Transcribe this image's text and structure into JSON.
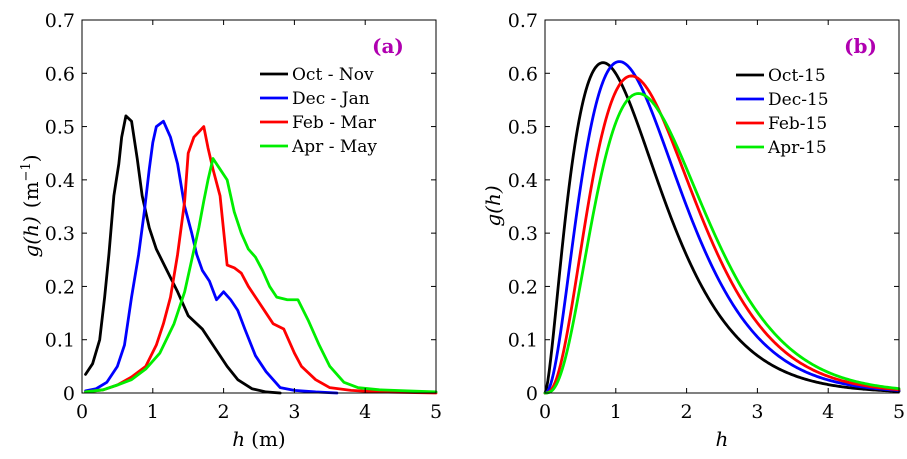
{
  "chart_data": [
    {
      "type": "line",
      "panel_label": "(a)",
      "xlabel_var": "h",
      "xlabel_unit": "(m)",
      "ylabel_var": "g(h)",
      "ylabel_unit": "(m",
      "ylabel_unit_exp": "−1",
      "ylabel_unit_close": ")",
      "xlim": [
        0,
        5
      ],
      "ylim": [
        0,
        0.7
      ],
      "xticks": [
        "0",
        "1",
        "2",
        "3",
        "4",
        "5"
      ],
      "yticks": [
        "0",
        "0.1",
        "0.2",
        "0.3",
        "0.4",
        "0.5",
        "0.6",
        "0.7"
      ],
      "legend_position": "top-right",
      "grid": false,
      "series": [
        {
          "name": "Oct - Nov",
          "color": "#000000",
          "points": [
            [
              0.05,
              0.035
            ],
            [
              0.15,
              0.055
            ],
            [
              0.25,
              0.1
            ],
            [
              0.32,
              0.18
            ],
            [
              0.38,
              0.26
            ],
            [
              0.45,
              0.37
            ],
            [
              0.52,
              0.43
            ],
            [
              0.56,
              0.48
            ],
            [
              0.62,
              0.52
            ],
            [
              0.7,
              0.51
            ],
            [
              0.78,
              0.44
            ],
            [
              0.85,
              0.37
            ],
            [
              0.95,
              0.31
            ],
            [
              1.05,
              0.27
            ],
            [
              1.2,
              0.23
            ],
            [
              1.35,
              0.19
            ],
            [
              1.5,
              0.145
            ],
            [
              1.7,
              0.12
            ],
            [
              1.9,
              0.08
            ],
            [
              2.05,
              0.05
            ],
            [
              2.2,
              0.025
            ],
            [
              2.4,
              0.008
            ],
            [
              2.6,
              0.002
            ],
            [
              2.8,
              0.0
            ]
          ]
        },
        {
          "name": "Dec - Jan",
          "color": "#0000ff",
          "points": [
            [
              0.05,
              0.004
            ],
            [
              0.2,
              0.008
            ],
            [
              0.35,
              0.02
            ],
            [
              0.5,
              0.05
            ],
            [
              0.6,
              0.09
            ],
            [
              0.7,
              0.18
            ],
            [
              0.8,
              0.26
            ],
            [
              0.88,
              0.34
            ],
            [
              0.95,
              0.42
            ],
            [
              1.0,
              0.47
            ],
            [
              1.05,
              0.5
            ],
            [
              1.15,
              0.51
            ],
            [
              1.25,
              0.48
            ],
            [
              1.35,
              0.43
            ],
            [
              1.45,
              0.35
            ],
            [
              1.55,
              0.3
            ],
            [
              1.62,
              0.26
            ],
            [
              1.7,
              0.23
            ],
            [
              1.8,
              0.21
            ],
            [
              1.9,
              0.175
            ],
            [
              2.0,
              0.19
            ],
            [
              2.1,
              0.175
            ],
            [
              2.2,
              0.155
            ],
            [
              2.3,
              0.12
            ],
            [
              2.45,
              0.07
            ],
            [
              2.6,
              0.04
            ],
            [
              2.8,
              0.01
            ],
            [
              3.0,
              0.005
            ],
            [
              3.3,
              0.002
            ],
            [
              3.6,
              0.0
            ]
          ]
        },
        {
          "name": "Feb - Mar",
          "color": "#ff0000",
          "points": [
            [
              0.05,
              0.002
            ],
            [
              0.3,
              0.006
            ],
            [
              0.5,
              0.015
            ],
            [
              0.7,
              0.03
            ],
            [
              0.9,
              0.05
            ],
            [
              1.05,
              0.09
            ],
            [
              1.15,
              0.13
            ],
            [
              1.25,
              0.18
            ],
            [
              1.35,
              0.26
            ],
            [
              1.45,
              0.36
            ],
            [
              1.5,
              0.45
            ],
            [
              1.58,
              0.48
            ],
            [
              1.65,
              0.49
            ],
            [
              1.72,
              0.5
            ],
            [
              1.78,
              0.46
            ],
            [
              1.85,
              0.42
            ],
            [
              1.95,
              0.37
            ],
            [
              2.05,
              0.24
            ],
            [
              2.15,
              0.235
            ],
            [
              2.25,
              0.225
            ],
            [
              2.35,
              0.2
            ],
            [
              2.5,
              0.17
            ],
            [
              2.6,
              0.15
            ],
            [
              2.7,
              0.13
            ],
            [
              2.85,
              0.12
            ],
            [
              3.0,
              0.075
            ],
            [
              3.1,
              0.05
            ],
            [
              3.3,
              0.025
            ],
            [
              3.5,
              0.01
            ],
            [
              3.8,
              0.005
            ],
            [
              4.2,
              0.002
            ],
            [
              5.0,
              0.0
            ]
          ]
        },
        {
          "name": "Apr - May",
          "color": "#00ee00",
          "points": [
            [
              0.05,
              0.002
            ],
            [
              0.3,
              0.006
            ],
            [
              0.5,
              0.015
            ],
            [
              0.7,
              0.025
            ],
            [
              0.9,
              0.045
            ],
            [
              1.1,
              0.075
            ],
            [
              1.3,
              0.13
            ],
            [
              1.45,
              0.19
            ],
            [
              1.55,
              0.25
            ],
            [
              1.65,
              0.31
            ],
            [
              1.72,
              0.36
            ],
            [
              1.78,
              0.4
            ],
            [
              1.85,
              0.44
            ],
            [
              1.95,
              0.42
            ],
            [
              2.05,
              0.4
            ],
            [
              2.15,
              0.34
            ],
            [
              2.25,
              0.3
            ],
            [
              2.35,
              0.27
            ],
            [
              2.45,
              0.255
            ],
            [
              2.55,
              0.23
            ],
            [
              2.65,
              0.2
            ],
            [
              2.75,
              0.18
            ],
            [
              2.9,
              0.175
            ],
            [
              3.05,
              0.175
            ],
            [
              3.2,
              0.135
            ],
            [
              3.35,
              0.09
            ],
            [
              3.5,
              0.05
            ],
            [
              3.7,
              0.02
            ],
            [
              3.9,
              0.01
            ],
            [
              4.2,
              0.006
            ],
            [
              4.6,
              0.004
            ],
            [
              5.0,
              0.002
            ]
          ]
        }
      ]
    },
    {
      "type": "line",
      "panel_label": "(b)",
      "xlabel_var": "h",
      "ylabel_var": "g(h)",
      "xlim": [
        0,
        5
      ],
      "ylim": [
        0,
        0.7
      ],
      "xticks": [
        "0",
        "1",
        "2",
        "3",
        "4",
        "5"
      ],
      "yticks": [
        "0",
        "0.1",
        "0.2",
        "0.3",
        "0.4",
        "0.5",
        "0.6",
        "0.7"
      ],
      "legend_position": "top-right",
      "grid": false,
      "series": [
        {
          "name": "Oct-15",
          "color": "#000000",
          "peak_x": 0.82,
          "peak_y": 0.62,
          "shape_k": 2.6
        },
        {
          "name": "Dec-15",
          "color": "#0000ff",
          "peak_x": 1.05,
          "peak_y": 0.622,
          "shape_k": 3.2
        },
        {
          "name": "Feb-15",
          "color": "#ff0000",
          "peak_x": 1.22,
          "peak_y": 0.595,
          "shape_k": 3.7
        },
        {
          "name": "Apr-15",
          "color": "#00ee00",
          "peak_x": 1.32,
          "peak_y": 0.562,
          "shape_k": 3.9
        }
      ]
    }
  ]
}
